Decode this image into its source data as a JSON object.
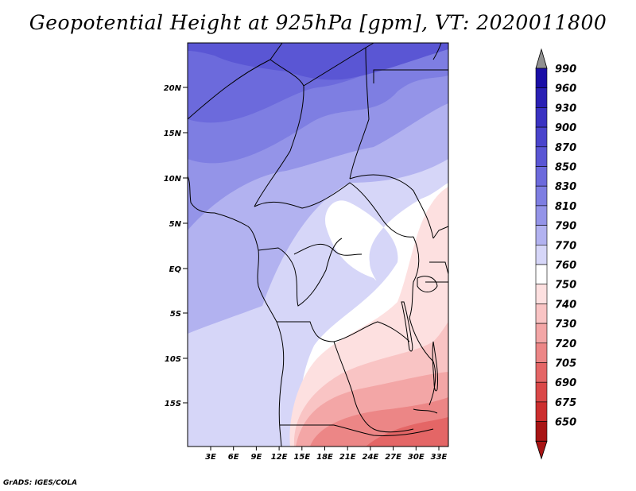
{
  "title": "Geopotential Height at 925hPa [gpm], VT: 2020011800",
  "footer": "GrADS: IGES/COLA",
  "lat_labels": [
    "20N",
    "15N",
    "10N",
    "5N",
    "EQ",
    "5S",
    "10S",
    "15S"
  ],
  "lon_labels": [
    "3E",
    "6E",
    "9E",
    "12E",
    "15E",
    "18E",
    "21E",
    "24E",
    "27E",
    "30E",
    "33E"
  ],
  "colorbar": {
    "levels": [
      "990",
      "960",
      "930",
      "900",
      "870",
      "850",
      "830",
      "810",
      "790",
      "770",
      "760",
      "750",
      "740",
      "730",
      "720",
      "705",
      "690",
      "675",
      "650"
    ],
    "colors": [
      "#1a0ea6",
      "#2a20b4",
      "#3a32c2",
      "#4a44cc",
      "#5a56d4",
      "#6c6adc",
      "#7e7ee2",
      "#9494e8",
      "#b2b2f0",
      "#d6d6f8",
      "#ffffff",
      "#fde0e0",
      "#f9c4c4",
      "#f3a6a6",
      "#ec8686",
      "#e46666",
      "#da4848",
      "#cc2e2e",
      "#a81414"
    ],
    "top_arrow_color": "#909090",
    "bottom_arrow_color": "#a81414"
  },
  "map": {
    "projection": "lat-lon",
    "lat_range": [
      "20S",
      "24N"
    ],
    "lon_range": [
      "1E",
      "35E"
    ],
    "contour_colors": [
      "#6c6adc",
      "#7e7ee2",
      "#9494e8",
      "#b2b2f0",
      "#d6d6f8",
      "#ffffff",
      "#fde0e0",
      "#f9c4c4",
      "#f3a6a6",
      "#ec8686",
      "#e46666"
    ]
  }
}
